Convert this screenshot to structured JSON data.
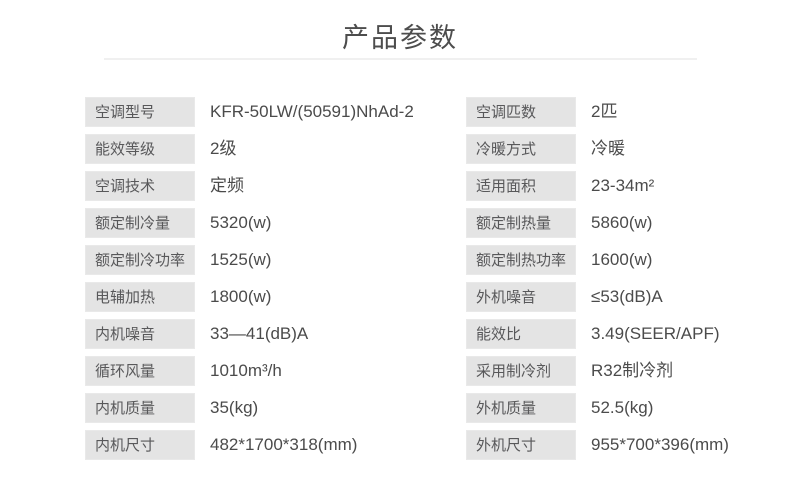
{
  "title": "产品参数",
  "colors": {
    "background": "#ffffff",
    "label_bg": "#e4e4e4",
    "label_text": "#58585a",
    "value_text": "#4b4b4b",
    "title_text": "#4d4d4d",
    "divider": "#f0f0f0"
  },
  "table": {
    "left_rows": [
      {
        "label": "空调型号",
        "value": "KFR-50LW/(50591)NhAd-2"
      },
      {
        "label": "能效等级",
        "value": "2级"
      },
      {
        "label": "空调技术",
        "value": "定频"
      },
      {
        "label": "额定制冷量",
        "value": "5320(w)"
      },
      {
        "label": "额定制冷功率",
        "value": "1525(w)"
      },
      {
        "label": "电辅加热",
        "value": "1800(w)"
      },
      {
        "label": "内机噪音",
        "value": "33—41(dB)A"
      },
      {
        "label": "循环风量",
        "value": "1010m³/h"
      },
      {
        "label": "内机质量",
        "value": "35(kg)"
      },
      {
        "label": "内机尺寸",
        "value": "482*1700*318(mm)"
      }
    ],
    "right_rows": [
      {
        "label": "空调匹数",
        "value": "2匹"
      },
      {
        "label": "冷暖方式",
        "value": "冷暖"
      },
      {
        "label": "适用面积",
        "value": "23-34m²"
      },
      {
        "label": "额定制热量",
        "value": "5860(w)"
      },
      {
        "label": "额定制热功率",
        "value": "1600(w)"
      },
      {
        "label": "外机噪音",
        "value": "≤53(dB)A"
      },
      {
        "label": "能效比",
        "value": "3.49(SEER/APF)"
      },
      {
        "label": "采用制冷剂",
        "value": "R32制冷剂"
      },
      {
        "label": "外机质量",
        "value": "52.5(kg)"
      },
      {
        "label": "外机尺寸",
        "value": "955*700*396(mm)"
      }
    ]
  }
}
